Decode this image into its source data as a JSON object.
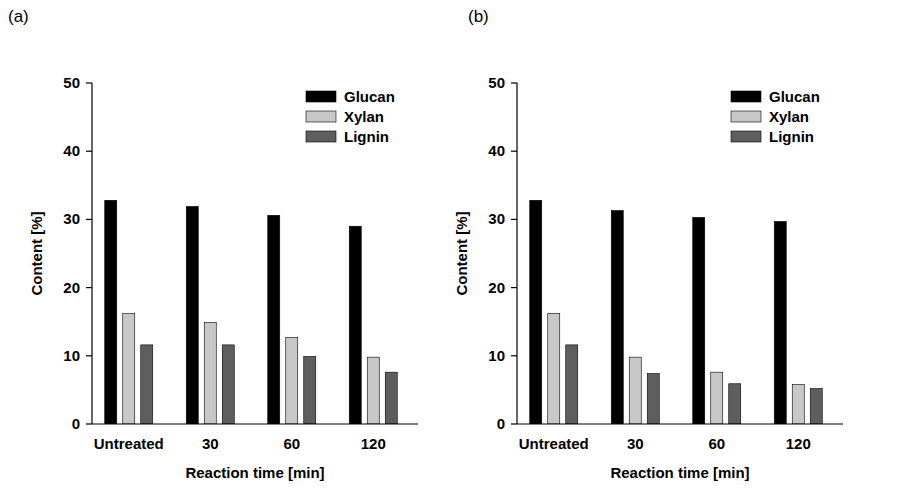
{
  "chart_data": [
    {
      "type": "bar",
      "title": "(a)",
      "x_label": "Reaction time [min]",
      "y_label": "Content [%]",
      "categories": [
        "Untreated",
        "30",
        "60",
        "120"
      ],
      "series": [
        {
          "name": "Glucan",
          "color": "#000000",
          "values": [
            32.8,
            31.9,
            30.6,
            29.0
          ]
        },
        {
          "name": "Xylan",
          "color": "#c8c8c8",
          "values": [
            16.2,
            14.9,
            12.7,
            9.8
          ]
        },
        {
          "name": "Lignin",
          "color": "#5e5e5e",
          "values": [
            11.6,
            11.6,
            9.9,
            7.6
          ]
        }
      ],
      "ylim": [
        0,
        50
      ],
      "yticks": [
        0,
        10,
        20,
        30,
        40,
        50
      ],
      "grid": false,
      "legend": "upper right"
    },
    {
      "type": "bar",
      "title": "(b)",
      "x_label": "Reaction time [min]",
      "y_label": "Content [%]",
      "categories": [
        "Untreated",
        "30",
        "60",
        "120"
      ],
      "series": [
        {
          "name": "Glucan",
          "color": "#000000",
          "values": [
            32.8,
            31.3,
            30.3,
            29.7
          ]
        },
        {
          "name": "Xylan",
          "color": "#c8c8c8",
          "values": [
            16.2,
            9.8,
            7.6,
            5.8
          ]
        },
        {
          "name": "Lignin",
          "color": "#5e5e5e",
          "values": [
            11.6,
            7.4,
            5.9,
            5.2
          ]
        }
      ],
      "ylim": [
        0,
        50
      ],
      "yticks": [
        0,
        10,
        20,
        30,
        40,
        50
      ],
      "grid": false,
      "legend": "upper right"
    }
  ]
}
